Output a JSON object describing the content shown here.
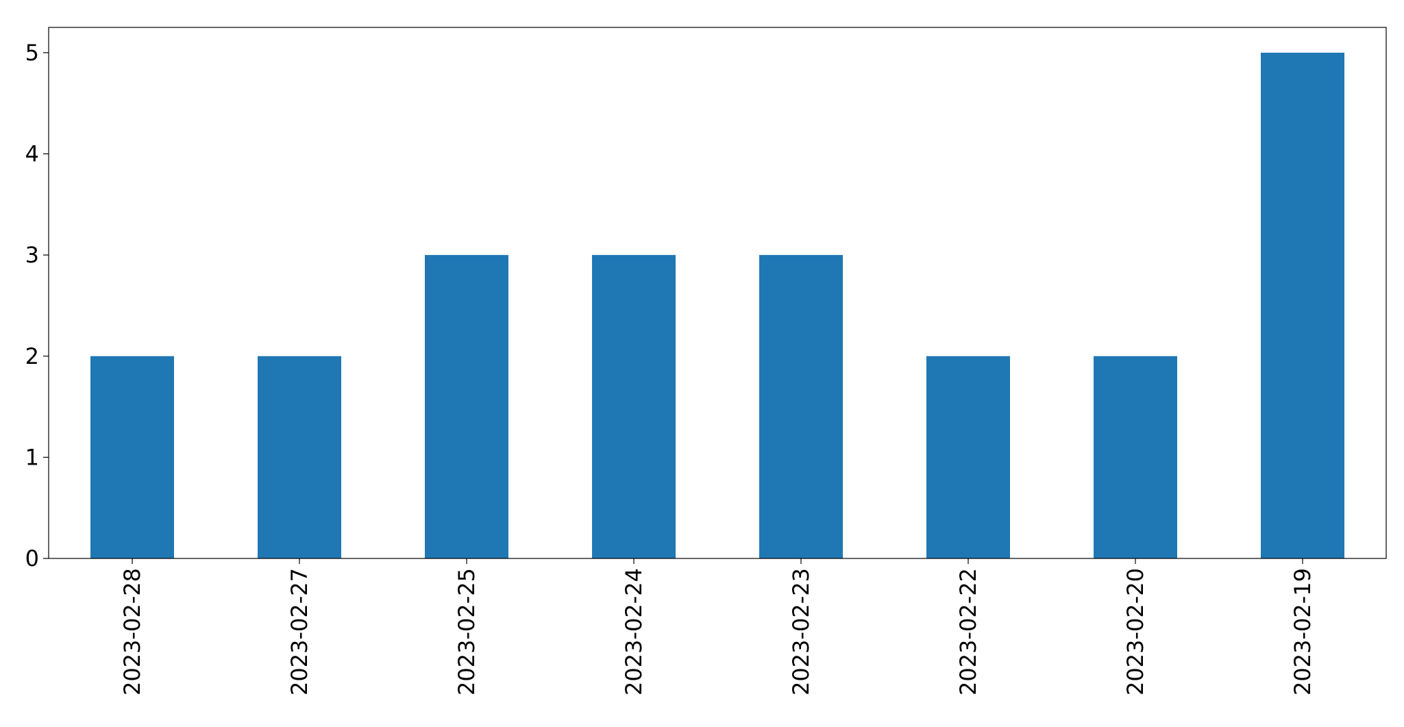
{
  "chart_data": {
    "type": "bar",
    "title": "",
    "xlabel": "",
    "ylabel": "",
    "categories": [
      "2023-02-28",
      "2023-02-27",
      "2023-02-25",
      "2023-02-24",
      "2023-02-23",
      "2023-02-22",
      "2023-02-20",
      "2023-02-19"
    ],
    "values": [
      2,
      2,
      3,
      3,
      3,
      2,
      2,
      5
    ],
    "ylim": [
      0,
      5.25
    ],
    "yticks": [
      0,
      1,
      2,
      3,
      4,
      5
    ],
    "grid": false,
    "legend": "none",
    "bar_color": "#1f77b4"
  }
}
